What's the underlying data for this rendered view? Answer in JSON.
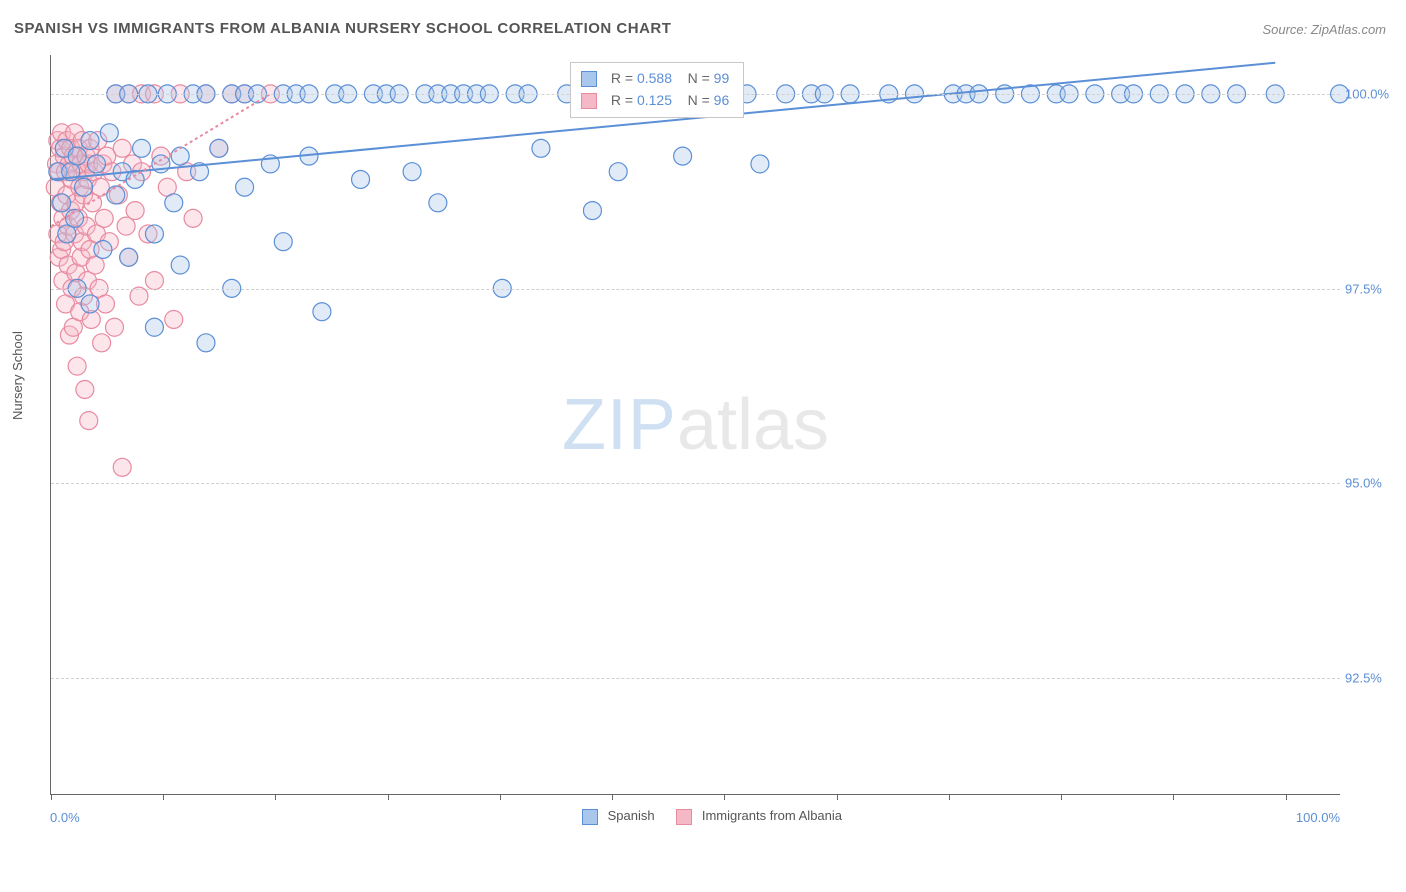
{
  "title": "SPANISH VS IMMIGRANTS FROM ALBANIA NURSERY SCHOOL CORRELATION CHART",
  "source_label": "Source: ZipAtlas.com",
  "yaxis_title": "Nursery School",
  "watermark": {
    "part1": "ZIP",
    "part2": "atlas"
  },
  "chart": {
    "type": "scatter",
    "background_color": "#ffffff",
    "grid_color": "#d0d0d0",
    "axis_color": "#666666",
    "tick_label_color": "#5b8fd6",
    "label_fontsize": 13,
    "title_fontsize": 15,
    "xlim": [
      0,
      100
    ],
    "ylim": [
      91.0,
      100.5
    ],
    "x_ticks": [
      0,
      8.7,
      17.4,
      26.1,
      34.8,
      43.5,
      52.2,
      60.9,
      69.6,
      78.3,
      87.0,
      95.7
    ],
    "y_ticks": [
      92.5,
      95.0,
      97.5,
      100.0
    ],
    "x_tick_labels_shown": {
      "min": "0.0%",
      "max": "100.0%"
    },
    "y_tick_labels": [
      "92.5%",
      "95.0%",
      "97.5%",
      "100.0%"
    ],
    "marker_radius": 9,
    "marker_stroke_width": 1.2,
    "marker_fill_opacity": 0.35,
    "trendline_width": 2,
    "trendline_dash": [
      3,
      3
    ]
  },
  "series": [
    {
      "name": "Spanish",
      "color_fill": "#a9c6ec",
      "color_stroke": "#5b8fd6",
      "r_value": "0.588",
      "n_value": "99",
      "trend": {
        "x1": 0,
        "y1": 98.9,
        "x2": 95,
        "y2": 100.4
      },
      "points": [
        [
          0.5,
          99.0
        ],
        [
          0.8,
          98.6
        ],
        [
          1.0,
          99.3
        ],
        [
          1.2,
          98.2
        ],
        [
          1.5,
          99.0
        ],
        [
          1.8,
          98.4
        ],
        [
          2.0,
          99.2
        ],
        [
          2.0,
          97.5
        ],
        [
          2.5,
          98.8
        ],
        [
          3.0,
          99.4
        ],
        [
          3.0,
          97.3
        ],
        [
          3.5,
          99.1
        ],
        [
          4.0,
          98.0
        ],
        [
          4.5,
          99.5
        ],
        [
          5.0,
          100.0
        ],
        [
          5.0,
          98.7
        ],
        [
          5.5,
          99.0
        ],
        [
          6.0,
          100.0
        ],
        [
          6.0,
          97.9
        ],
        [
          6.5,
          98.9
        ],
        [
          7.0,
          99.3
        ],
        [
          7.5,
          100.0
        ],
        [
          8.0,
          98.2
        ],
        [
          8.0,
          97.0
        ],
        [
          8.5,
          99.1
        ],
        [
          9.0,
          100.0
        ],
        [
          9.5,
          98.6
        ],
        [
          10.0,
          99.2
        ],
        [
          10.0,
          97.8
        ],
        [
          11.0,
          100.0
        ],
        [
          11.5,
          99.0
        ],
        [
          12.0,
          100.0
        ],
        [
          12.0,
          96.8
        ],
        [
          13.0,
          99.3
        ],
        [
          14.0,
          100.0
        ],
        [
          14.0,
          97.5
        ],
        [
          15.0,
          100.0
        ],
        [
          15.0,
          98.8
        ],
        [
          16.0,
          100.0
        ],
        [
          17.0,
          99.1
        ],
        [
          18.0,
          100.0
        ],
        [
          18.0,
          98.1
        ],
        [
          19.0,
          100.0
        ],
        [
          20.0,
          100.0
        ],
        [
          20.0,
          99.2
        ],
        [
          21.0,
          97.2
        ],
        [
          22.0,
          100.0
        ],
        [
          23.0,
          100.0
        ],
        [
          24.0,
          98.9
        ],
        [
          25.0,
          100.0
        ],
        [
          26.0,
          100.0
        ],
        [
          27.0,
          100.0
        ],
        [
          28.0,
          99.0
        ],
        [
          29.0,
          100.0
        ],
        [
          30.0,
          100.0
        ],
        [
          30.0,
          98.6
        ],
        [
          31.0,
          100.0
        ],
        [
          32.0,
          100.0
        ],
        [
          33.0,
          100.0
        ],
        [
          34.0,
          100.0
        ],
        [
          35.0,
          97.5
        ],
        [
          36.0,
          100.0
        ],
        [
          37.0,
          100.0
        ],
        [
          38.0,
          99.3
        ],
        [
          40.0,
          100.0
        ],
        [
          41.0,
          100.0
        ],
        [
          42.0,
          98.5
        ],
        [
          43.0,
          100.0
        ],
        [
          44.0,
          99.0
        ],
        [
          45.0,
          100.0
        ],
        [
          46.0,
          100.0
        ],
        [
          48.0,
          100.0
        ],
        [
          49.0,
          99.2
        ],
        [
          50.0,
          100.0
        ],
        [
          52.0,
          100.0
        ],
        [
          54.0,
          100.0
        ],
        [
          55.0,
          99.1
        ],
        [
          57.0,
          100.0
        ],
        [
          59.0,
          100.0
        ],
        [
          60.0,
          100.0
        ],
        [
          62.0,
          100.0
        ],
        [
          65.0,
          100.0
        ],
        [
          67.0,
          100.0
        ],
        [
          70.0,
          100.0
        ],
        [
          71.0,
          100.0
        ],
        [
          72.0,
          100.0
        ],
        [
          74.0,
          100.0
        ],
        [
          76.0,
          100.0
        ],
        [
          78.0,
          100.0
        ],
        [
          79.0,
          100.0
        ],
        [
          81.0,
          100.0
        ],
        [
          83.0,
          100.0
        ],
        [
          84.0,
          100.0
        ],
        [
          86.0,
          100.0
        ],
        [
          88.0,
          100.0
        ],
        [
          90.0,
          100.0
        ],
        [
          92.0,
          100.0
        ],
        [
          95.0,
          100.0
        ],
        [
          100.0,
          100.0
        ]
      ]
    },
    {
      "name": "Immigrants from Albania",
      "color_fill": "#f5b8c6",
      "color_stroke": "#e88aa0",
      "r_value": "0.125",
      "n_value": "96",
      "trend": {
        "x1": 0,
        "y1": 98.3,
        "x2": 17,
        "y2": 100.0
      },
      "points": [
        [
          0.3,
          98.8
        ],
        [
          0.4,
          99.1
        ],
        [
          0.5,
          98.2
        ],
        [
          0.5,
          99.4
        ],
        [
          0.6,
          97.9
        ],
        [
          0.6,
          99.0
        ],
        [
          0.7,
          98.6
        ],
        [
          0.7,
          99.3
        ],
        [
          0.8,
          98.0
        ],
        [
          0.8,
          99.5
        ],
        [
          0.9,
          98.4
        ],
        [
          0.9,
          97.6
        ],
        [
          1.0,
          99.2
        ],
        [
          1.0,
          98.1
        ],
        [
          1.1,
          99.0
        ],
        [
          1.1,
          97.3
        ],
        [
          1.2,
          98.7
        ],
        [
          1.2,
          99.4
        ],
        [
          1.3,
          97.8
        ],
        [
          1.3,
          98.3
        ],
        [
          1.4,
          99.1
        ],
        [
          1.4,
          96.9
        ],
        [
          1.5,
          98.5
        ],
        [
          1.5,
          99.3
        ],
        [
          1.6,
          97.5
        ],
        [
          1.6,
          98.9
        ],
        [
          1.7,
          99.2
        ],
        [
          1.7,
          97.0
        ],
        [
          1.8,
          98.2
        ],
        [
          1.8,
          99.5
        ],
        [
          1.9,
          97.7
        ],
        [
          1.9,
          98.6
        ],
        [
          2.0,
          99.0
        ],
        [
          2.0,
          96.5
        ],
        [
          2.1,
          98.4
        ],
        [
          2.1,
          99.3
        ],
        [
          2.2,
          97.2
        ],
        [
          2.2,
          98.8
        ],
        [
          2.3,
          99.1
        ],
        [
          2.3,
          97.9
        ],
        [
          2.4,
          98.1
        ],
        [
          2.4,
          99.4
        ],
        [
          2.5,
          97.4
        ],
        [
          2.5,
          98.7
        ],
        [
          2.6,
          99.0
        ],
        [
          2.6,
          96.2
        ],
        [
          2.7,
          98.3
        ],
        [
          2.7,
          99.2
        ],
        [
          2.8,
          97.6
        ],
        [
          2.8,
          98.9
        ],
        [
          2.9,
          99.1
        ],
        [
          2.9,
          95.8
        ],
        [
          3.0,
          98.0
        ],
        [
          3.0,
          99.3
        ],
        [
          3.1,
          97.1
        ],
        [
          3.2,
          98.6
        ],
        [
          3.3,
          99.0
        ],
        [
          3.4,
          97.8
        ],
        [
          3.5,
          98.2
        ],
        [
          3.6,
          99.4
        ],
        [
          3.7,
          97.5
        ],
        [
          3.8,
          98.8
        ],
        [
          3.9,
          96.8
        ],
        [
          4.0,
          99.1
        ],
        [
          4.1,
          98.4
        ],
        [
          4.2,
          97.3
        ],
        [
          4.3,
          99.2
        ],
        [
          4.5,
          98.1
        ],
        [
          4.7,
          99.0
        ],
        [
          4.9,
          97.0
        ],
        [
          5.0,
          100.0
        ],
        [
          5.2,
          98.7
        ],
        [
          5.5,
          99.3
        ],
        [
          5.5,
          95.2
        ],
        [
          5.8,
          98.3
        ],
        [
          6.0,
          100.0
        ],
        [
          6.0,
          97.9
        ],
        [
          6.3,
          99.1
        ],
        [
          6.5,
          98.5
        ],
        [
          6.8,
          97.4
        ],
        [
          7.0,
          100.0
        ],
        [
          7.0,
          99.0
        ],
        [
          7.5,
          98.2
        ],
        [
          8.0,
          100.0
        ],
        [
          8.0,
          97.6
        ],
        [
          8.5,
          99.2
        ],
        [
          9.0,
          98.8
        ],
        [
          9.5,
          97.1
        ],
        [
          10.0,
          100.0
        ],
        [
          10.5,
          99.0
        ],
        [
          11.0,
          98.4
        ],
        [
          12.0,
          100.0
        ],
        [
          13.0,
          99.3
        ],
        [
          14.0,
          100.0
        ],
        [
          15.0,
          100.0
        ],
        [
          17.0,
          100.0
        ]
      ]
    }
  ],
  "legend_top": {
    "r_label": "R =",
    "n_label": "N ="
  },
  "legend_bottom_labels": [
    "Spanish",
    "Immigrants from Albania"
  ]
}
